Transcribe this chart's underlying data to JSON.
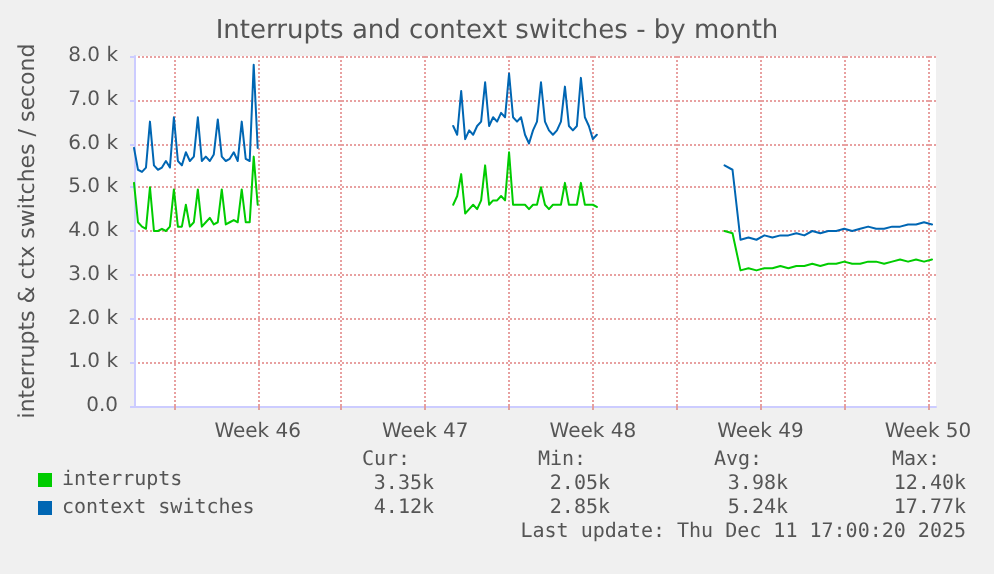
{
  "chart_data": {
    "type": "line",
    "title": "Interrupts and context switches - by month",
    "ylabel": "interrupts & ctx switches / second",
    "x": [
      "2025-11-08T08:00",
      "2025-11-08T12:00",
      "2025-11-08T16:00",
      "2025-11-08T20:00",
      "2025-11-09T00:00",
      "2025-11-09T04:00",
      "2025-11-09T08:00",
      "2025-11-09T12:00",
      "2025-11-09T16:00",
      "2025-11-09T20:00",
      "2025-11-10T00:00",
      "2025-11-10T04:00",
      "2025-11-10T08:00",
      "2025-11-10T12:00",
      "2025-11-10T16:00",
      "2025-11-10T20:00",
      "2025-11-11T00:00",
      "2025-11-11T04:00",
      "2025-11-11T08:00",
      "2025-11-11T12:00",
      "2025-11-11T16:00",
      "2025-11-11T20:00",
      "2025-11-12T00:00",
      "2025-11-12T04:00",
      "2025-11-12T08:00",
      "2025-11-12T12:00",
      "2025-11-12T16:00",
      "2025-11-12T20:00",
      "2025-11-13T00:00",
      "2025-11-13T04:00",
      "2025-11-13T08:00",
      "2025-11-13T12:00",
      "2025-11-17T12:00",
      "2025-11-21T16:00",
      "2025-11-21T20:00",
      "2025-11-22T00:00",
      "2025-11-22T04:00",
      "2025-11-22T08:00",
      "2025-11-22T12:00",
      "2025-11-22T16:00",
      "2025-11-22T20:00",
      "2025-11-23T00:00",
      "2025-11-23T04:00",
      "2025-11-23T08:00",
      "2025-11-23T12:00",
      "2025-11-23T16:00",
      "2025-11-23T20:00",
      "2025-11-24T00:00",
      "2025-11-24T04:00",
      "2025-11-24T08:00",
      "2025-11-24T12:00",
      "2025-11-24T16:00",
      "2025-11-24T20:00",
      "2025-11-25T00:00",
      "2025-11-25T04:00",
      "2025-11-25T08:00",
      "2025-11-25T12:00",
      "2025-11-25T16:00",
      "2025-11-25T20:00",
      "2025-11-26T00:00",
      "2025-11-26T04:00",
      "2025-11-26T08:00",
      "2025-11-26T12:00",
      "2025-11-26T16:00",
      "2025-11-26T20:00",
      "2025-11-27T00:00",
      "2025-11-27T04:00",
      "2025-11-27T08:00",
      "2025-11-27T12:00",
      "2025-11-27T16:00",
      "2025-11-30T08:00",
      "2025-12-03T00:00",
      "2025-12-03T08:00",
      "2025-12-03T16:00",
      "2025-12-04T00:00",
      "2025-12-04T08:00",
      "2025-12-04T16:00",
      "2025-12-05T00:00",
      "2025-12-05T08:00",
      "2025-12-05T16:00",
      "2025-12-06T00:00",
      "2025-12-06T08:00",
      "2025-12-06T16:00",
      "2025-12-07T00:00",
      "2025-12-07T08:00",
      "2025-12-07T16:00",
      "2025-12-08T00:00",
      "2025-12-08T08:00",
      "2025-12-08T16:00",
      "2025-12-09T00:00",
      "2025-12-09T08:00",
      "2025-12-09T16:00",
      "2025-12-10T00:00",
      "2025-12-10T08:00",
      "2025-12-10T16:00",
      "2025-12-11T00:00",
      "2025-12-11T08:00",
      "2025-12-11T16:00"
    ],
    "series": [
      {
        "name": "interrupts",
        "color": "#00cc00",
        "values": [
          5100,
          4200,
          4100,
          4050,
          5000,
          4000,
          4000,
          4050,
          4000,
          4100,
          4950,
          4100,
          4100,
          4600,
          4100,
          4200,
          4950,
          4100,
          4200,
          4300,
          4150,
          4200,
          4950,
          4150,
          4200,
          4250,
          4200,
          4950,
          4200,
          4200,
          5700,
          4600,
          null,
          4600,
          4800,
          5300,
          4400,
          4500,
          4600,
          4500,
          4700,
          5500,
          4600,
          4700,
          4700,
          4800,
          4700,
          5800,
          4600,
          4600,
          4600,
          4600,
          4500,
          4600,
          4600,
          5000,
          4600,
          4500,
          4600,
          4600,
          4600,
          5100,
          4600,
          4600,
          4600,
          5100,
          4600,
          4600,
          4600,
          4550,
          null,
          4000,
          3950,
          3100,
          3150,
          3100,
          3150,
          3150,
          3200,
          3150,
          3200,
          3200,
          3250,
          3200,
          3250,
          3250,
          3300,
          3250,
          3250,
          3300,
          3300,
          3250,
          3300,
          3350,
          3300,
          3350,
          3300,
          3350
        ]
      },
      {
        "name": "context switches",
        "color": "#0066b3",
        "values": [
          5900,
          5400,
          5350,
          5450,
          6500,
          5500,
          5400,
          5450,
          5600,
          5450,
          6600,
          5600,
          5500,
          5800,
          5600,
          5700,
          6600,
          5600,
          5700,
          5600,
          5750,
          6550,
          5700,
          5600,
          5650,
          5800,
          5600,
          6500,
          5650,
          5600,
          7800,
          5900,
          null,
          6400,
          6200,
          7200,
          6100,
          6300,
          6200,
          6400,
          6500,
          7400,
          6400,
          6600,
          6500,
          6700,
          6600,
          7600,
          6600,
          6500,
          6600,
          6200,
          6000,
          6300,
          6500,
          7400,
          6500,
          6300,
          6200,
          6300,
          6500,
          7300,
          6400,
          6300,
          6400,
          7500,
          6600,
          6400,
          6100,
          6200,
          null,
          5500,
          5400,
          3800,
          3850,
          3800,
          3900,
          3850,
          3900,
          3900,
          3950,
          3900,
          4000,
          3950,
          4000,
          4000,
          4050,
          4000,
          4050,
          4100,
          4050,
          4050,
          4100,
          4100,
          4150,
          4150,
          4200,
          4150
        ]
      }
    ],
    "xlim": [
      "2025-11-08T08:00",
      "2025-12-11T20:00"
    ],
    "xticks": [
      {
        "value": "2025-11-10T00:00",
        "label": null
      },
      {
        "value": "2025-11-13T12:00",
        "label": "Week 46"
      },
      {
        "value": "2025-11-17T00:00",
        "label": null
      },
      {
        "value": "2025-11-20T12:00",
        "label": "Week 47"
      },
      {
        "value": "2025-11-24T00:00",
        "label": null
      },
      {
        "value": "2025-11-27T12:00",
        "label": "Week 48"
      },
      {
        "value": "2025-12-01T00:00",
        "label": null
      },
      {
        "value": "2025-12-04T12:00",
        "label": "Week 49"
      },
      {
        "value": "2025-12-08T00:00",
        "label": null
      },
      {
        "value": "2025-12-11T12:00",
        "label": "Week 50"
      }
    ],
    "ylim": [
      0,
      8000
    ],
    "yticks": [
      {
        "value": 0,
        "label": "0.0"
      },
      {
        "value": 1000,
        "label": "1.0 k"
      },
      {
        "value": 2000,
        "label": "2.0 k"
      },
      {
        "value": 3000,
        "label": "3.0 k"
      },
      {
        "value": 4000,
        "label": "4.0 k"
      },
      {
        "value": 5000,
        "label": "5.0 k"
      },
      {
        "value": 6000,
        "label": "6.0 k"
      },
      {
        "value": 7000,
        "label": "7.0 k"
      },
      {
        "value": 8000,
        "label": "8.0 k"
      }
    ],
    "grid": true,
    "legend": "bottom",
    "annotations": [
      "Cur:",
      "Min:",
      "Avg:",
      "Max:",
      "3.35k",
      "2.05k",
      "3.98k",
      "12.40k",
      "4.12k",
      "2.85k",
      "5.24k",
      "17.77k",
      "Last update: Thu Dec 11 17:00:20 2025"
    ]
  }
}
